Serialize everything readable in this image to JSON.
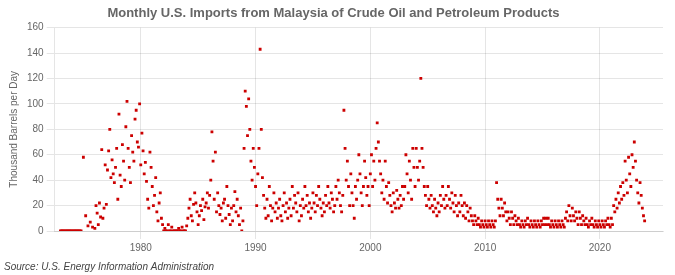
{
  "chart_data": {
    "type": "scatter",
    "title": "Monthly U.S. Imports from Malaysia of Crude Oil and Petroleum Products",
    "ylabel": "Thousand Barrels per Day",
    "source": "Source: U.S. Energy Information Administration",
    "color": "#cc0000",
    "marker": "square",
    "grid": true,
    "xlim": [
      1972.5,
      2025.5
    ],
    "xticks": [
      1980,
      1990,
      2000,
      2010,
      2020
    ],
    "ylim": [
      0,
      160
    ],
    "yticks": [
      0,
      20,
      40,
      60,
      80,
      100,
      120,
      140,
      160
    ],
    "x": [
      1973.0,
      1973.1,
      1973.2,
      1973.3,
      1973.4,
      1973.5,
      1973.6,
      1973.7,
      1973.8,
      1973.9,
      1974.0,
      1974.1,
      1974.2,
      1974.3,
      1974.4,
      1974.5,
      1974.6,
      1974.7,
      1974.8,
      1975.0,
      1975.2,
      1975.4,
      1975.6,
      1975.8,
      1976.0,
      1976.1,
      1976.2,
      1976.3,
      1976.4,
      1976.5,
      1976.6,
      1976.7,
      1976.8,
      1976.9,
      1977.0,
      1977.1,
      1977.2,
      1977.3,
      1977.4,
      1977.5,
      1977.6,
      1977.7,
      1977.8,
      1977.9,
      1978.0,
      1978.1,
      1978.2,
      1978.3,
      1978.4,
      1978.5,
      1978.6,
      1978.7,
      1978.8,
      1978.9,
      1979.0,
      1979.1,
      1979.2,
      1979.3,
      1979.4,
      1979.5,
      1979.6,
      1979.7,
      1979.8,
      1979.9,
      1980.0,
      1980.1,
      1980.2,
      1980.3,
      1980.4,
      1980.5,
      1980.6,
      1980.7,
      1980.8,
      1980.9,
      1981.0,
      1981.1,
      1981.2,
      1981.3,
      1981.4,
      1981.5,
      1981.6,
      1981.7,
      1981.8,
      1981.9,
      1982.0,
      1982.1,
      1982.2,
      1982.3,
      1982.4,
      1982.5,
      1982.6,
      1982.7,
      1982.8,
      1982.9,
      1983.0,
      1983.1,
      1983.2,
      1983.3,
      1983.4,
      1983.5,
      1983.6,
      1983.7,
      1983.8,
      1983.9,
      1984.0,
      1984.1,
      1984.2,
      1984.3,
      1984.4,
      1984.5,
      1984.6,
      1984.7,
      1984.8,
      1984.9,
      1985.0,
      1985.1,
      1985.2,
      1985.3,
      1985.4,
      1985.5,
      1985.6,
      1985.7,
      1985.8,
      1985.9,
      1986.0,
      1986.1,
      1986.2,
      1986.3,
      1986.4,
      1986.5,
      1986.6,
      1986.7,
      1986.8,
      1986.9,
      1987.0,
      1987.1,
      1987.2,
      1987.3,
      1987.4,
      1987.5,
      1987.6,
      1987.7,
      1987.8,
      1987.9,
      1988.0,
      1988.1,
      1988.2,
      1988.3,
      1988.4,
      1988.5,
      1988.6,
      1988.7,
      1988.8,
      1988.9,
      1989.0,
      1989.1,
      1989.2,
      1989.3,
      1989.4,
      1989.5,
      1989.6,
      1989.7,
      1989.8,
      1989.9,
      1990.0,
      1990.1,
      1990.2,
      1990.3,
      1990.4,
      1990.5,
      1990.6,
      1990.7,
      1990.8,
      1990.9,
      1991.0,
      1991.1,
      1991.2,
      1991.3,
      1991.4,
      1991.5,
      1991.6,
      1991.7,
      1991.8,
      1991.9,
      1992.0,
      1992.1,
      1992.2,
      1992.3,
      1992.4,
      1992.5,
      1992.6,
      1992.7,
      1992.8,
      1992.9,
      1993.0,
      1993.1,
      1993.2,
      1993.3,
      1993.4,
      1993.5,
      1993.6,
      1993.7,
      1993.8,
      1993.9,
      1994.0,
      1994.1,
      1994.2,
      1994.3,
      1994.4,
      1994.5,
      1994.6,
      1994.7,
      1994.8,
      1994.9,
      1995.0,
      1995.1,
      1995.2,
      1995.3,
      1995.4,
      1995.5,
      1995.6,
      1995.7,
      1995.8,
      1995.9,
      1996.0,
      1996.1,
      1996.2,
      1996.3,
      1996.4,
      1996.5,
      1996.6,
      1996.7,
      1996.8,
      1996.9,
      1997.0,
      1997.1,
      1997.2,
      1997.3,
      1997.4,
      1997.5,
      1997.6,
      1997.7,
      1997.8,
      1997.9,
      1998.0,
      1998.1,
      1998.2,
      1998.3,
      1998.4,
      1998.5,
      1998.6,
      1998.7,
      1998.8,
      1998.9,
      1999.0,
      1999.1,
      1999.2,
      1999.3,
      1999.4,
      1999.5,
      1999.6,
      1999.7,
      1999.8,
      1999.9,
      2000.0,
      2000.1,
      2000.2,
      2000.3,
      2000.4,
      2000.5,
      2000.6,
      2000.7,
      2000.8,
      2000.9,
      2001.0,
      2001.1,
      2001.2,
      2001.3,
      2001.4,
      2001.5,
      2001.6,
      2001.7,
      2001.8,
      2001.9,
      2002.0,
      2002.1,
      2002.2,
      2002.3,
      2002.4,
      2002.5,
      2002.6,
      2002.7,
      2002.8,
      2002.9,
      2003.0,
      2003.1,
      2003.2,
      2003.3,
      2003.4,
      2003.5,
      2003.6,
      2003.7,
      2003.8,
      2003.9,
      2004.0,
      2004.1,
      2004.2,
      2004.3,
      2004.4,
      2004.5,
      2004.6,
      2004.7,
      2004.8,
      2004.9,
      2005.0,
      2005.1,
      2005.2,
      2005.3,
      2005.4,
      2005.5,
      2005.6,
      2005.7,
      2005.8,
      2005.9,
      2006.0,
      2006.1,
      2006.2,
      2006.3,
      2006.4,
      2006.5,
      2006.6,
      2006.7,
      2006.8,
      2006.9,
      2007.0,
      2007.1,
      2007.2,
      2007.3,
      2007.4,
      2007.5,
      2007.6,
      2007.7,
      2007.8,
      2007.9,
      2008.0,
      2008.1,
      2008.2,
      2008.3,
      2008.4,
      2008.5,
      2008.6,
      2008.7,
      2008.8,
      2008.9,
      2009.0,
      2009.1,
      2009.2,
      2009.3,
      2009.4,
      2009.5,
      2009.6,
      2009.7,
      2009.8,
      2009.9,
      2010.0,
      2010.1,
      2010.2,
      2010.3,
      2010.4,
      2010.5,
      2010.6,
      2010.7,
      2010.8,
      2010.9,
      2011.0,
      2011.1,
      2011.2,
      2011.3,
      2011.4,
      2011.5,
      2011.6,
      2011.7,
      2011.8,
      2011.9,
      2012.0,
      2012.1,
      2012.2,
      2012.3,
      2012.4,
      2012.5,
      2012.6,
      2012.7,
      2012.8,
      2012.9,
      2013.0,
      2013.1,
      2013.2,
      2013.3,
      2013.4,
      2013.5,
      2013.6,
      2013.7,
      2013.8,
      2013.9,
      2014.0,
      2014.1,
      2014.2,
      2014.3,
      2014.4,
      2014.5,
      2014.6,
      2014.7,
      2014.8,
      2014.9,
      2015.0,
      2015.1,
      2015.2,
      2015.3,
      2015.4,
      2015.5,
      2015.6,
      2015.7,
      2015.8,
      2015.9,
      2016.0,
      2016.1,
      2016.2,
      2016.3,
      2016.4,
      2016.5,
      2016.6,
      2016.7,
      2016.8,
      2016.9,
      2017.0,
      2017.1,
      2017.2,
      2017.3,
      2017.4,
      2017.5,
      2017.6,
      2017.7,
      2017.8,
      2017.9,
      2018.0,
      2018.1,
      2018.2,
      2018.3,
      2018.4,
      2018.5,
      2018.6,
      2018.7,
      2018.8,
      2018.9,
      2019.0,
      2019.1,
      2019.2,
      2019.3,
      2019.4,
      2019.5,
      2019.6,
      2019.7,
      2019.8,
      2019.9,
      2020.0,
      2020.1,
      2020.2,
      2020.3,
      2020.4,
      2020.5,
      2020.6,
      2020.7,
      2020.8,
      2020.9,
      2021.0,
      2021.1,
      2021.2,
      2021.3,
      2021.4,
      2021.5,
      2021.6,
      2021.7,
      2021.8,
      2021.9,
      2022.0,
      2022.1,
      2022.2,
      2022.3,
      2022.4,
      2022.5,
      2022.6,
      2022.7,
      2022.8,
      2022.9,
      2023.0,
      2023.1,
      2023.2,
      2023.3,
      2023.4,
      2023.5,
      2023.6,
      2023.7,
      2023.8,
      2023.9
    ],
    "values": [
      0,
      0,
      0,
      0,
      0,
      0,
      0,
      0,
      0,
      0,
      0,
      0,
      0,
      0,
      0,
      0,
      0,
      0,
      0,
      58,
      12,
      4,
      7,
      3,
      2,
      20,
      14,
      5,
      22,
      11,
      64,
      10,
      18,
      52,
      21,
      48,
      63,
      80,
      42,
      56,
      45,
      38,
      50,
      65,
      25,
      92,
      44,
      35,
      68,
      55,
      40,
      82,
      102,
      65,
      50,
      38,
      75,
      62,
      55,
      88,
      95,
      70,
      66,
      100,
      52,
      77,
      63,
      45,
      54,
      39,
      25,
      18,
      62,
      50,
      35,
      20,
      28,
      42,
      15,
      8,
      22,
      30,
      10,
      5,
      0,
      2,
      0,
      0,
      5,
      0,
      0,
      3,
      0,
      0,
      0,
      0,
      0,
      2,
      0,
      0,
      3,
      0,
      0,
      0,
      4,
      10,
      18,
      25,
      12,
      8,
      21,
      30,
      22,
      15,
      5,
      12,
      20,
      16,
      25,
      9,
      19,
      22,
      30,
      18,
      28,
      40,
      78,
      55,
      25,
      62,
      15,
      30,
      20,
      13,
      18,
      8,
      22,
      25,
      10,
      35,
      20,
      13,
      5,
      18,
      8,
      20,
      31,
      15,
      25,
      12,
      5,
      18,
      0,
      8,
      65,
      110,
      98,
      75,
      104,
      80,
      55,
      40,
      65,
      50,
      35,
      20,
      45,
      65,
      143,
      80,
      42,
      28,
      18,
      10,
      25,
      12,
      35,
      20,
      8,
      18,
      30,
      15,
      22,
      10,
      18,
      25,
      12,
      8,
      20,
      30,
      15,
      22,
      10,
      18,
      25,
      12,
      35,
      18,
      28,
      22,
      15,
      30,
      8,
      20,
      12,
      25,
      18,
      35,
      20,
      28,
      15,
      22,
      10,
      18,
      30,
      22,
      15,
      28,
      20,
      35,
      25,
      18,
      12,
      22,
      15,
      28,
      20,
      35,
      22,
      18,
      30,
      25,
      15,
      20,
      35,
      25,
      40,
      30,
      20,
      15,
      28,
      95,
      65,
      40,
      55,
      35,
      20,
      45,
      30,
      20,
      10,
      35,
      25,
      40,
      60,
      45,
      30,
      20,
      35,
      55,
      42,
      28,
      35,
      20,
      45,
      60,
      35,
      55,
      40,
      65,
      85,
      70,
      55,
      45,
      30,
      40,
      25,
      55,
      35,
      22,
      38,
      28,
      20,
      15,
      30,
      22,
      18,
      32,
      25,
      18,
      28,
      20,
      35,
      25,
      35,
      60,
      45,
      30,
      55,
      40,
      25,
      65,
      50,
      35,
      65,
      50,
      40,
      55,
      120,
      65,
      50,
      35,
      28,
      20,
      35,
      25,
      18,
      28,
      20,
      15,
      25,
      18,
      12,
      22,
      15,
      28,
      20,
      35,
      25,
      18,
      28,
      20,
      35,
      25,
      18,
      30,
      22,
      15,
      28,
      20,
      12,
      22,
      15,
      28,
      20,
      12,
      22,
      10,
      20,
      15,
      8,
      18,
      12,
      8,
      5,
      12,
      8,
      5,
      10,
      5,
      3,
      8,
      5,
      3,
      8,
      5,
      3,
      8,
      5,
      3,
      8,
      5,
      3,
      8,
      38,
      25,
      18,
      12,
      25,
      18,
      12,
      22,
      15,
      8,
      15,
      10,
      5,
      15,
      10,
      5,
      12,
      8,
      5,
      10,
      5,
      3,
      8,
      5,
      3,
      8,
      5,
      10,
      5,
      3,
      8,
      5,
      3,
      8,
      5,
      3,
      8,
      5,
      3,
      8,
      5,
      10,
      5,
      10,
      5,
      10,
      5,
      3,
      8,
      5,
      3,
      8,
      5,
      3,
      8,
      5,
      3,
      8,
      5,
      3,
      10,
      15,
      8,
      20,
      12,
      8,
      18,
      12,
      8,
      15,
      10,
      5,
      15,
      10,
      5,
      12,
      8,
      5,
      10,
      5,
      3,
      8,
      5,
      10,
      5,
      3,
      8,
      5,
      3,
      8,
      5,
      3,
      8,
      5,
      3,
      8,
      5,
      10,
      5,
      3,
      10,
      5,
      20,
      15,
      25,
      18,
      30,
      22,
      35,
      25,
      38,
      28,
      55,
      40,
      30,
      58,
      45,
      35,
      60,
      50,
      70,
      55,
      40,
      30,
      22,
      38,
      28,
      18,
      12,
      8
    ]
  }
}
